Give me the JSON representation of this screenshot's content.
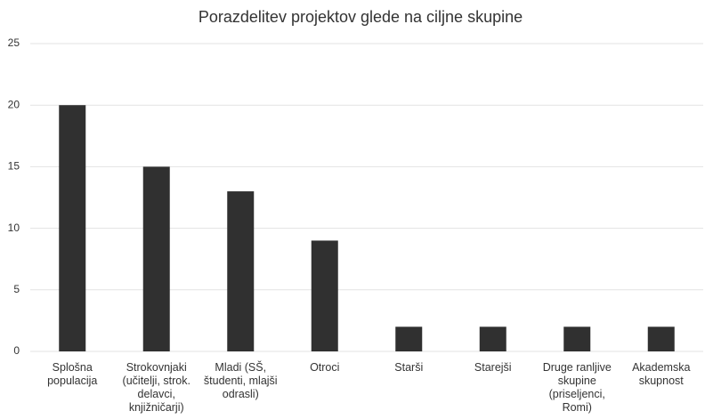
{
  "chart_data": {
    "type": "bar",
    "title": "Porazdelitev projektov glede na ciljne skupine",
    "categories": [
      "Splošna populacija",
      "Strokovnjaki (učitelji, strok. delavci, knjižničarji)",
      "Mladi (SŠ, študenti, mlajši odrasli)",
      "Otroci",
      "Starši",
      "Starejši",
      "Druge ranljive skupine (priseljenci, Romi)",
      "Akademska skupnost"
    ],
    "values": [
      20,
      15,
      13,
      9,
      2,
      2,
      2,
      2
    ],
    "color": "#303030",
    "ylim": [
      0,
      25
    ],
    "yticks": [
      0,
      5,
      10,
      15,
      20,
      25
    ],
    "grid": true
  }
}
